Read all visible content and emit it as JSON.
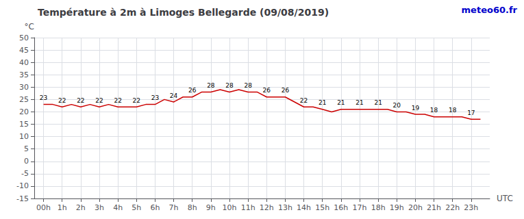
{
  "chart_data": {
    "type": "line",
    "title": "Température à 2m à Limoges Bellegarde (09/08/2019)",
    "xlabel": "UTC",
    "ylabel": "°C",
    "x": [
      0,
      0.5,
      1,
      1.5,
      2,
      2.5,
      3,
      3.5,
      4,
      4.5,
      5,
      5.5,
      6,
      6.5,
      7,
      7.5,
      8,
      8.5,
      9,
      9.5,
      10,
      10.5,
      11,
      11.5,
      12,
      12.5,
      13,
      13.5,
      14,
      14.5,
      15,
      15.5,
      16,
      16.5,
      17,
      17.5,
      18,
      18.5,
      19,
      19.5,
      20,
      20.5,
      21,
      21.5,
      22,
      22.5,
      23,
      23.5
    ],
    "values": [
      23,
      23,
      22,
      23,
      22,
      23,
      22,
      23,
      22,
      22,
      22,
      23,
      23,
      25,
      24,
      26,
      26,
      28,
      28,
      29,
      28,
      29,
      28,
      28,
      26,
      26,
      26,
      24,
      22,
      22,
      21,
      20,
      21,
      21,
      21,
      21,
      21,
      21,
      20,
      20,
      19,
      19,
      18,
      18,
      18,
      18,
      17,
      17
    ],
    "value_labels": [
      "23",
      null,
      "22",
      null,
      "22",
      null,
      "22",
      null,
      "22",
      null,
      "22",
      null,
      "23",
      null,
      "24",
      null,
      "26",
      null,
      "28",
      null,
      "28",
      null,
      "28",
      null,
      "26",
      null,
      "26",
      null,
      "22",
      null,
      "21",
      null,
      "21",
      null,
      "21",
      null,
      "21",
      null,
      "20",
      null,
      "19",
      null,
      "18",
      null,
      "18",
      null,
      "17",
      null
    ],
    "data_labels": true,
    "color": "#cc0000",
    "xlim": [
      -0.5,
      24
    ],
    "xticks": [
      {
        "value": 0,
        "label": "00h"
      },
      {
        "value": 1,
        "label": "1h"
      },
      {
        "value": 2,
        "label": "2h"
      },
      {
        "value": 3,
        "label": "3h"
      },
      {
        "value": 4,
        "label": "4h"
      },
      {
        "value": 5,
        "label": "5h"
      },
      {
        "value": 6,
        "label": "6h"
      },
      {
        "value": 7,
        "label": "7h"
      },
      {
        "value": 8,
        "label": "8h"
      },
      {
        "value": 9,
        "label": "9h"
      },
      {
        "value": 10,
        "label": "10h"
      },
      {
        "value": 11,
        "label": "11h"
      },
      {
        "value": 12,
        "label": "12h"
      },
      {
        "value": 13,
        "label": "13h"
      },
      {
        "value": 14,
        "label": "14h"
      },
      {
        "value": 15,
        "label": "15h"
      },
      {
        "value": 16,
        "label": "16h"
      },
      {
        "value": 17,
        "label": "17h"
      },
      {
        "value": 18,
        "label": "18h"
      },
      {
        "value": 19,
        "label": "19h"
      },
      {
        "value": 20,
        "label": "20h"
      },
      {
        "value": 21,
        "label": "21h"
      },
      {
        "value": 22,
        "label": "22h"
      },
      {
        "value": 23,
        "label": "23h"
      }
    ],
    "ylim": [
      -15,
      50
    ],
    "yticks": [
      -15,
      -10,
      -5,
      0,
      5,
      10,
      15,
      20,
      25,
      30,
      35,
      40,
      45,
      50
    ],
    "grid": true,
    "annotations": [
      {
        "text": "meteo60.fr",
        "color": "#0000cc"
      }
    ]
  }
}
